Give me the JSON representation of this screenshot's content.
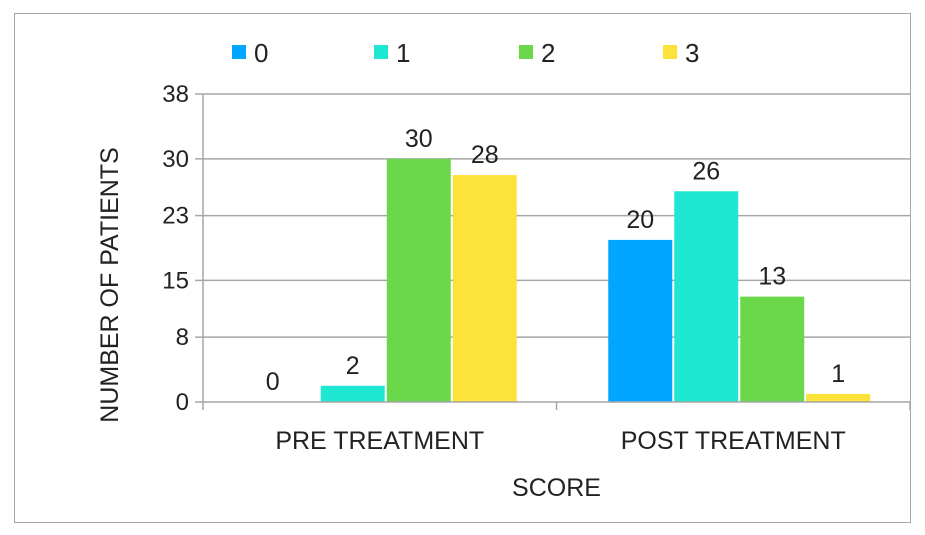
{
  "chart_data": {
    "type": "bar",
    "title": "",
    "xlabel": "SCORE",
    "ylabel": "NUMBER OF PATIENTS",
    "categories": [
      "PRE TREATMENT",
      "POST TREATMENT"
    ],
    "series": [
      {
        "name": "0",
        "values": [
          0,
          20
        ],
        "color": "#00a6ff"
      },
      {
        "name": "1",
        "values": [
          2,
          26
        ],
        "color": "#1ee8d2"
      },
      {
        "name": "2",
        "values": [
          30,
          13
        ],
        "color": "#6ad84a"
      },
      {
        "name": "3",
        "values": [
          28,
          1
        ],
        "color": "#fbe33a"
      }
    ],
    "yticks": [
      "0",
      "8",
      "15",
      "23",
      "30",
      "38"
    ],
    "ylim": [
      0,
      38
    ],
    "grid": true,
    "legend": "top"
  }
}
